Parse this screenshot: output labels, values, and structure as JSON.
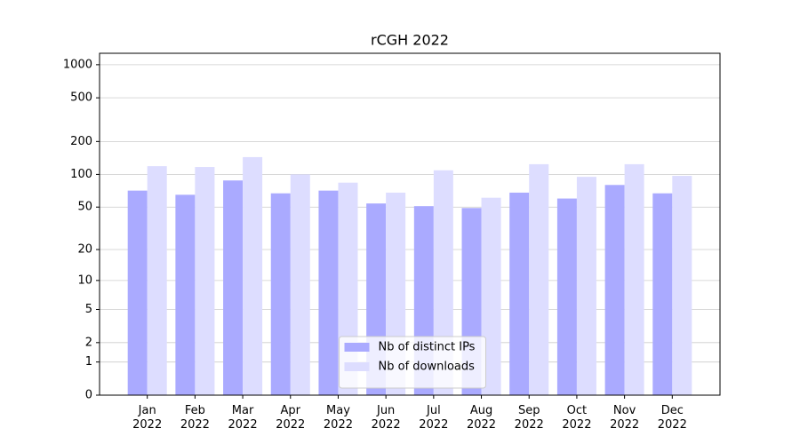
{
  "chart_data": {
    "type": "bar",
    "title": "rCGH 2022",
    "categories": [
      "Jan\n2022",
      "Feb\n2022",
      "Mar\n2022",
      "Apr\n2022",
      "May\n2022",
      "Jun\n2022",
      "Jul\n2022",
      "Aug\n2022",
      "Sep\n2022",
      "Oct\n2022",
      "Nov\n2022",
      "Dec\n2022"
    ],
    "series": [
      {
        "name": "Nb of distinct IPs",
        "color": "#aaaaff",
        "values": [
          71,
          65,
          88,
          67,
          71,
          54,
          51,
          49,
          68,
          60,
          80,
          67
        ]
      },
      {
        "name": "Nb of downloads",
        "color": "#ddddff",
        "values": [
          119,
          117,
          144,
          100,
          84,
          68,
          109,
          61,
          124,
          95,
          124,
          97
        ]
      }
    ],
    "yscale": "log1p",
    "ylim": [
      0,
      1270
    ],
    "yticks": [
      0,
      1,
      2,
      5,
      10,
      20,
      50,
      100,
      200,
      500,
      1000
    ],
    "grid": true,
    "legend": "lower center"
  }
}
